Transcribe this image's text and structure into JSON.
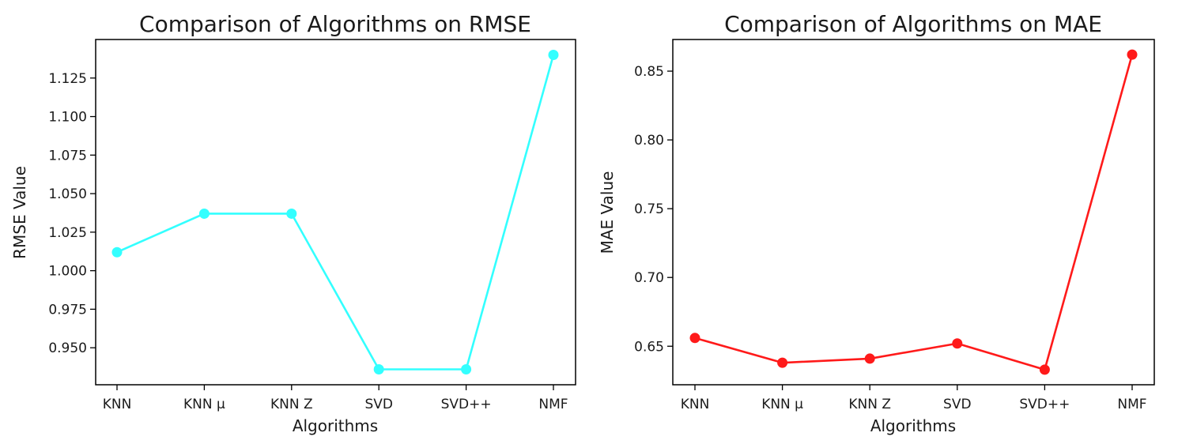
{
  "chart_data": [
    {
      "type": "line",
      "title": "Comparison of Algorithms on RMSE",
      "xlabel": "Algorithms",
      "ylabel": "RMSE Value",
      "categories": [
        "KNN",
        "KNN μ",
        "KNN Z",
        "SVD",
        "SVD++",
        "NMF"
      ],
      "series": [
        {
          "values": [
            1.012,
            1.037,
            1.037,
            0.936,
            0.936,
            1.14
          ],
          "color": "#33ffff"
        }
      ],
      "yticks": [
        0.95,
        0.975,
        1.0,
        1.025,
        1.05,
        1.075,
        1.1,
        1.125
      ],
      "ytick_labels": [
        "0.950",
        "0.975",
        "1.000",
        "1.025",
        "1.050",
        "1.075",
        "1.100",
        "1.125"
      ],
      "ylim": [
        0.926,
        1.15
      ],
      "grid": false,
      "marker": "circle"
    },
    {
      "type": "line",
      "title": "Comparison of Algorithms on MAE",
      "xlabel": "Algorithms",
      "ylabel": "MAE Value",
      "categories": [
        "KNN",
        "KNN μ",
        "KNN Z",
        "SVD",
        "SVD++",
        "NMF"
      ],
      "series": [
        {
          "values": [
            0.656,
            0.638,
            0.641,
            0.652,
            0.633,
            0.862
          ],
          "color": "#ff1a1a"
        }
      ],
      "yticks": [
        0.65,
        0.7,
        0.75,
        0.8,
        0.85
      ],
      "ytick_labels": [
        "0.65",
        "0.70",
        "0.75",
        "0.80",
        "0.85"
      ],
      "ylim": [
        0.622,
        0.873
      ],
      "grid": false,
      "marker": "circle"
    }
  ]
}
